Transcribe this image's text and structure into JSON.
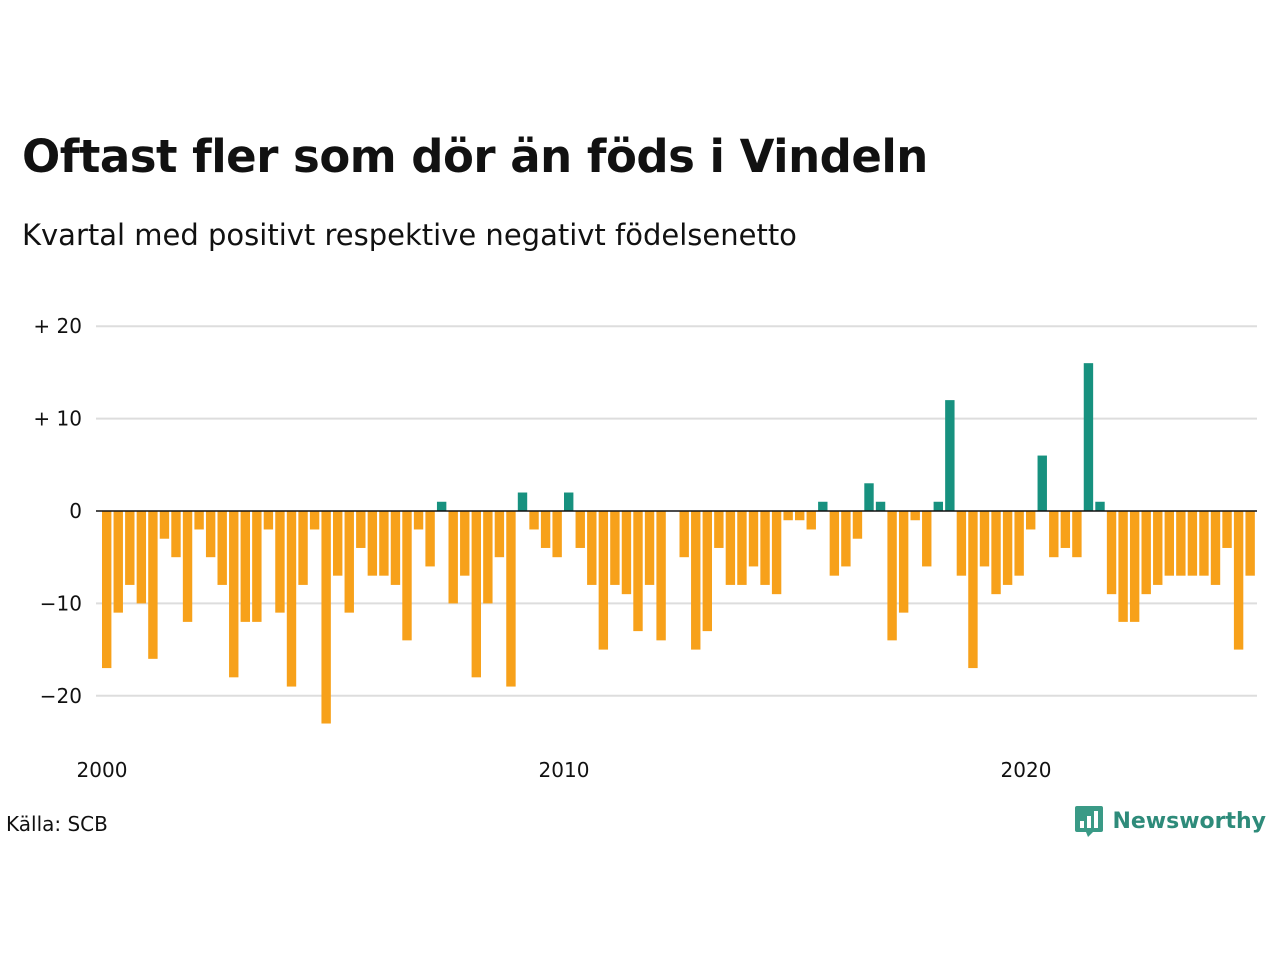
{
  "header": {
    "title": "Oftast fler som dör än föds i Vindeln",
    "subtitle": "Kvartal med positivt respektive negativt födelsenetto"
  },
  "footer": {
    "source": "Källa: SCB",
    "brand": "Newsworthy"
  },
  "colors": {
    "positive": "#17917f",
    "negative": "#f7a11a",
    "grid": "#dddddd",
    "zero_line": "#111111",
    "brand": "#2e8b7a",
    "logo": "#3a9a86"
  },
  "icons": {
    "logo": "newsworthy-chart-bubble-icon"
  },
  "chart_data": {
    "type": "bar",
    "start_year": 2000,
    "start_quarter": 1,
    "frequency": "quarterly",
    "values": [
      -17,
      -11,
      -8,
      -10,
      -16,
      -3,
      -5,
      -12,
      -2,
      -5,
      -8,
      -18,
      -12,
      -12,
      -2,
      -11,
      -19,
      -8,
      -2,
      -23,
      -7,
      -11,
      -4,
      -7,
      -7,
      -8,
      -14,
      -2,
      -6,
      1,
      -10,
      -7,
      -18,
      -10,
      -5,
      -19,
      2,
      -2,
      -4,
      -5,
      2,
      -4,
      -8,
      -15,
      -8,
      -9,
      -13,
      -8,
      -14,
      0,
      -5,
      -15,
      -13,
      -4,
      -8,
      -8,
      -6,
      -8,
      -9,
      -1,
      -1,
      -2,
      1,
      -7,
      -6,
      -3,
      3,
      1,
      -14,
      -11,
      -1,
      -6,
      1,
      12,
      -7,
      -17,
      -6,
      -9,
      -8,
      -7,
      -2,
      6,
      -5,
      -4,
      -5,
      16,
      1,
      -9,
      -12,
      -12,
      -9,
      -8,
      -7,
      -7,
      -7,
      -7,
      -8,
      -4,
      -15,
      -7
    ],
    "y_ticks": [
      20,
      10,
      0,
      -10,
      -20
    ],
    "y_tick_labels": [
      "+ 20",
      "+ 10",
      "0",
      "−10",
      "−20"
    ],
    "x_ticks": [
      2000,
      2010,
      2020
    ],
    "x_tick_labels": [
      "2000",
      "2010",
      "2020"
    ],
    "ylim": [
      -25,
      20
    ],
    "grid": true,
    "legend": "none"
  }
}
